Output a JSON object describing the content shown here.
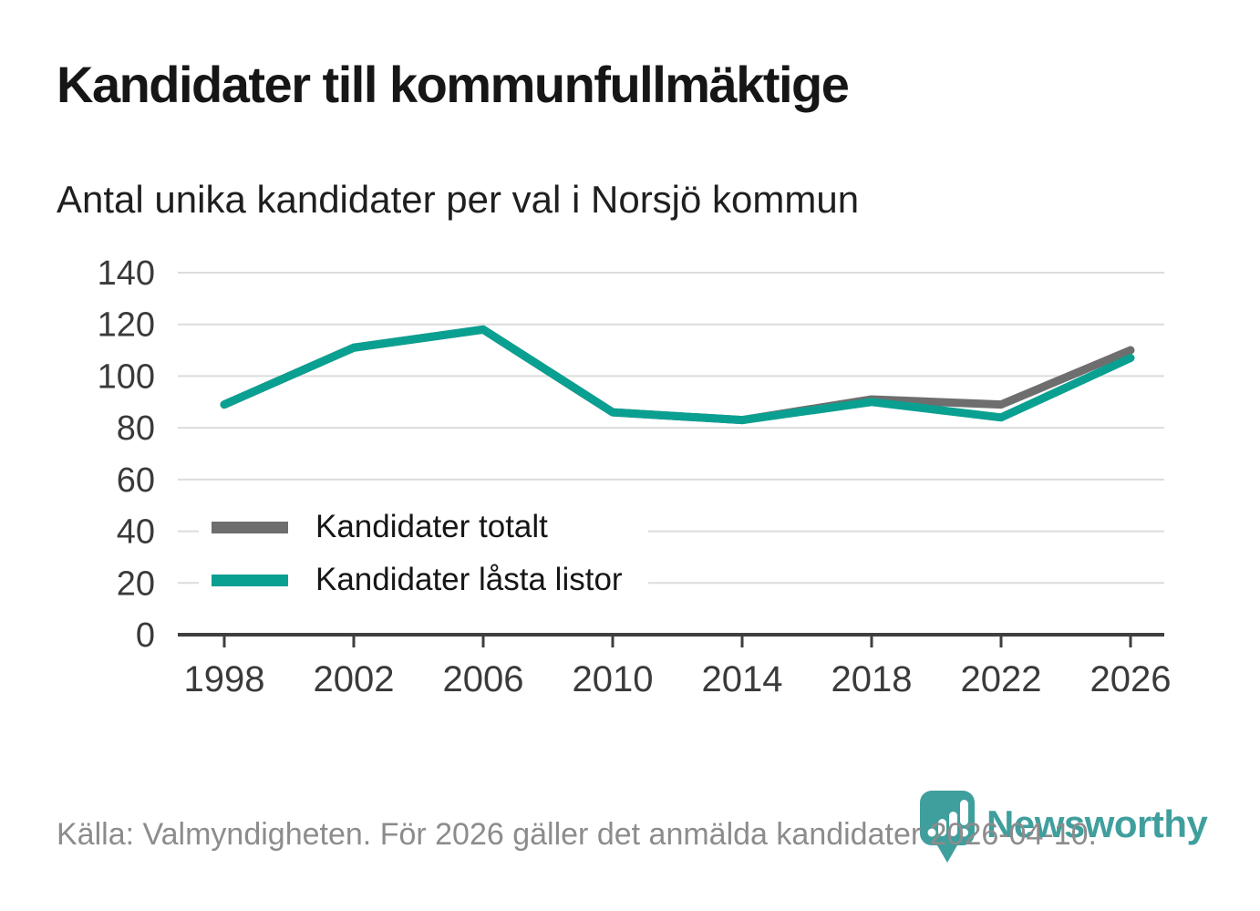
{
  "page": {
    "title": "Kandidater till kommunfullmäktige",
    "subtitle": "Antal unika kandidater per val i Norsjö kommun",
    "source_note": "Källa: Valmyndigheten. För 2026 gäller det anmälda kandidater 2026-04-10.",
    "brand": {
      "name": "Newsworthy",
      "icon": "newsworthy-pin-barchart-icon"
    }
  },
  "colors": {
    "series_total_gray": "#6e6e6e",
    "series_locked_teal": "#0aa091",
    "brand_teal": "#3f9f9d",
    "gridline": "#dcdcdc",
    "axis": "#3f3f3f",
    "tick_label": "#3a3a3a",
    "footer_gray": "#8c8c8c",
    "background": "#ffffff"
  },
  "chart_data": {
    "type": "line",
    "title": "Kandidater till kommunfullmäktige",
    "subtitle": "Antal unika kandidater per val i Norsjö kommun",
    "x": [
      1998,
      2002,
      2006,
      2010,
      2014,
      2018,
      2022,
      2026
    ],
    "series": [
      {
        "name": "Kandidater totalt",
        "color": "#6e6e6e",
        "values": [
          89,
          111,
          118,
          86,
          83,
          91,
          89,
          110
        ]
      },
      {
        "name": "Kandidater låsta listor",
        "color": "#0aa091",
        "values": [
          89,
          111,
          118,
          86,
          83,
          90,
          84,
          107
        ]
      }
    ],
    "xlabel": "",
    "ylabel": "",
    "ylim": [
      0,
      140
    ],
    "yticks": [
      0,
      20,
      40,
      60,
      80,
      100,
      120,
      140
    ],
    "grid": "horizontal",
    "legend_position": "inside-left"
  }
}
